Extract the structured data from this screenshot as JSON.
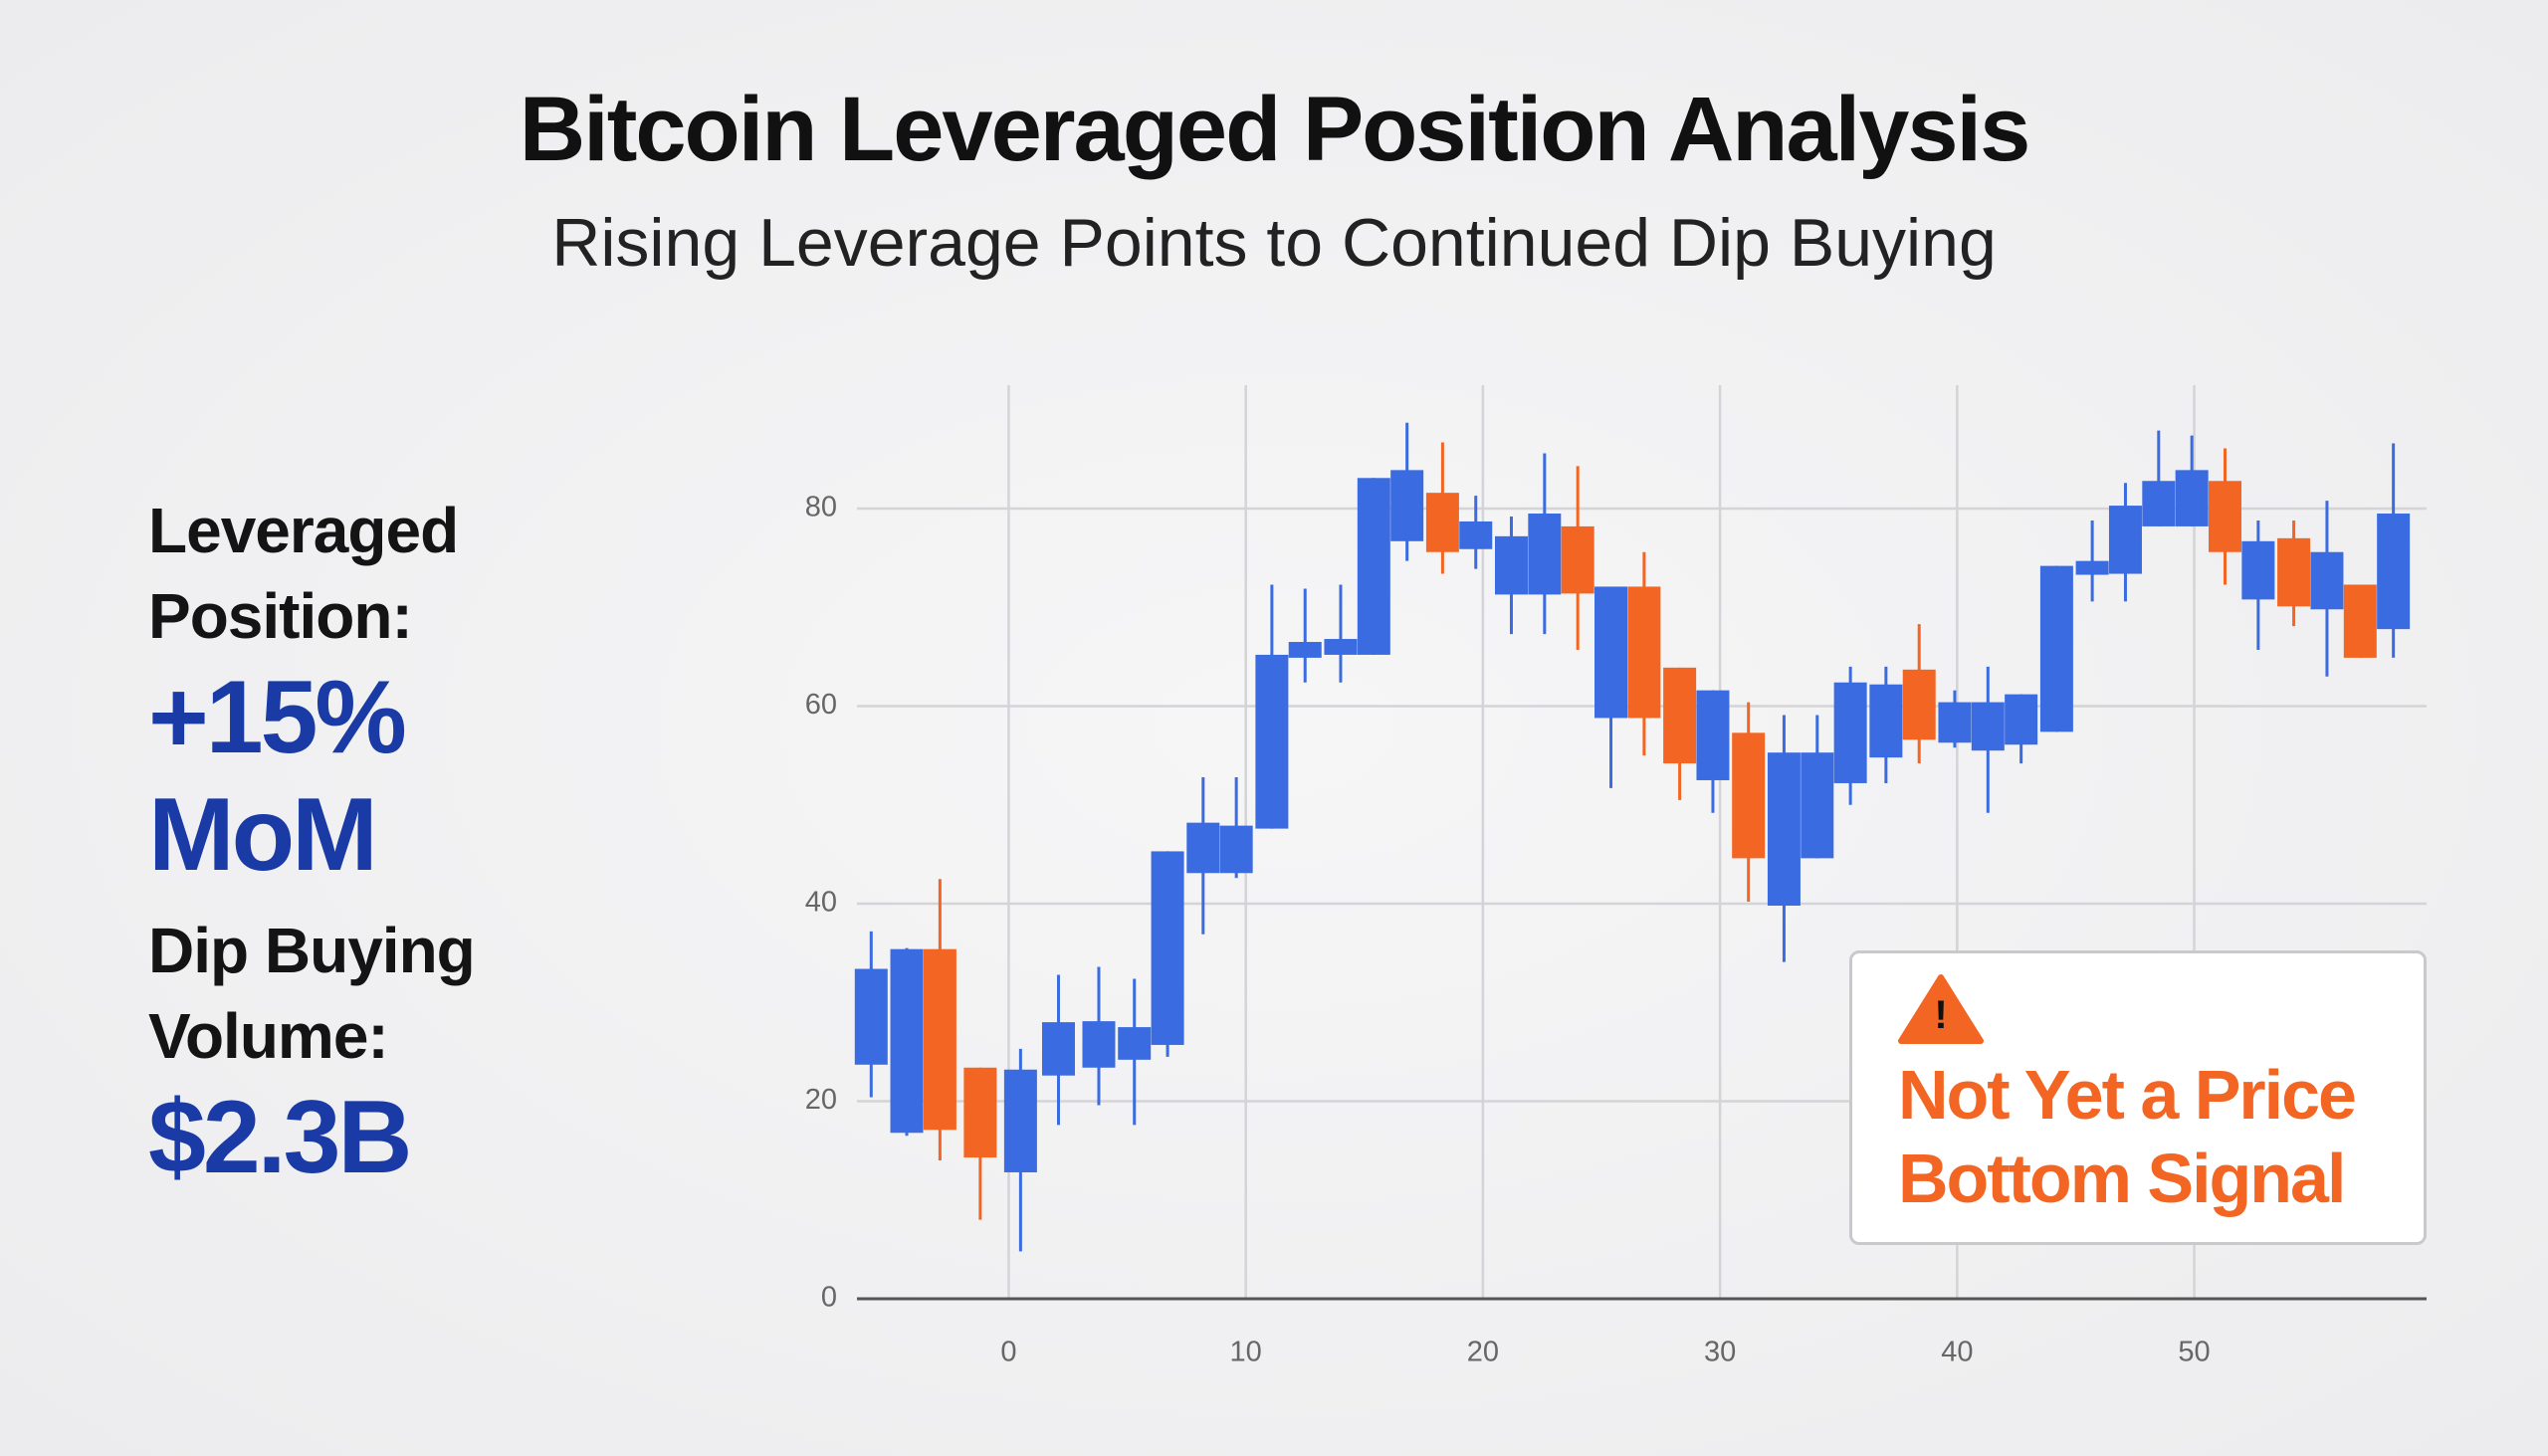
{
  "chart_data": {
    "type": "candlestick",
    "title": "Bitcoin Leveraged Position Analysis",
    "subtitle": "Rising Leverage Points to Continued Dip Buying",
    "x": [
      -5.8,
      -4.3,
      -2.9,
      -1.2,
      0.5,
      2.1,
      3.8,
      5.3,
      6.7,
      8.2,
      9.6,
      11.1,
      12.5,
      14.0,
      15.4,
      16.8,
      18.3,
      19.7,
      21.2,
      22.6,
      24.0,
      25.4,
      26.8,
      28.3,
      29.7,
      31.2,
      32.7,
      34.1,
      35.5,
      37.0,
      38.4,
      39.9,
      41.3,
      42.7,
      44.2,
      45.7,
      47.1,
      48.5,
      49.9,
      51.3,
      52.7,
      54.2,
      55.6,
      57.0,
      58.4
    ],
    "open": [
      23.7,
      16.8,
      35.4,
      23.4,
      12.8,
      22.6,
      23.4,
      24.2,
      25.7,
      43.1,
      43.1,
      47.6,
      64.9,
      65.2,
      65.2,
      76.7,
      81.6,
      75.9,
      71.3,
      71.3,
      78.2,
      58.8,
      72.1,
      63.9,
      52.5,
      57.3,
      39.8,
      44.6,
      52.2,
      54.8,
      63.7,
      56.3,
      55.5,
      56.1,
      57.4,
      73.3,
      73.4,
      78.2,
      78.2,
      82.8,
      70.8,
      77.0,
      69.8,
      72.3,
      67.8
    ],
    "high": [
      37.2,
      35.5,
      42.5,
      23.4,
      25.3,
      32.8,
      33.6,
      32.4,
      45.3,
      52.8,
      52.8,
      72.3,
      71.9,
      72.3,
      83.1,
      88.7,
      86.7,
      81.3,
      79.2,
      85.6,
      84.3,
      72.1,
      75.6,
      63.9,
      61.6,
      60.4,
      59.1,
      59.1,
      64.0,
      64.0,
      68.3,
      61.6,
      64.0,
      61.2,
      74.2,
      78.8,
      82.6,
      87.9,
      87.4,
      86.1,
      78.8,
      78.8,
      80.8,
      72.3,
      86.6
    ],
    "low": [
      20.4,
      16.5,
      14.0,
      8.0,
      4.8,
      17.6,
      19.6,
      17.6,
      24.5,
      36.9,
      42.6,
      47.6,
      62.4,
      62.4,
      65.2,
      74.7,
      73.4,
      73.9,
      67.3,
      67.3,
      65.7,
      51.7,
      55.0,
      50.5,
      49.2,
      40.2,
      34.1,
      44.6,
      50.0,
      52.2,
      54.2,
      55.8,
      49.2,
      54.2,
      57.4,
      70.6,
      70.6,
      78.2,
      78.2,
      72.3,
      65.7,
      68.1,
      63.0,
      64.9,
      64.9
    ],
    "close": [
      33.4,
      35.4,
      17.1,
      14.3,
      23.2,
      28.0,
      28.1,
      27.5,
      45.3,
      48.2,
      47.9,
      65.2,
      66.5,
      66.8,
      83.1,
      83.9,
      75.6,
      78.7,
      77.2,
      79.5,
      71.4,
      72.1,
      58.8,
      54.2,
      61.6,
      44.6,
      55.3,
      55.3,
      62.4,
      62.2,
      56.6,
      60.4,
      60.4,
      61.2,
      74.2,
      74.7,
      80.3,
      82.8,
      83.9,
      75.6,
      76.7,
      70.1,
      75.6,
      64.9,
      79.5
    ],
    "up_color": "#3b6be0",
    "down_color": "#f26522",
    "xlim": [
      -6.4,
      59.8
    ],
    "ylim": [
      0,
      92.5
    ],
    "xticks": [
      0,
      10,
      20,
      30,
      40,
      50
    ],
    "yticks": [
      0,
      20,
      40,
      60,
      80
    ],
    "grid": true
  },
  "panel": [
    {
      "label": "Leveraged Position:",
      "value": "+15% MoM"
    },
    {
      "label": "Dip Buying Volume:",
      "value": "$2.3B"
    }
  ],
  "callout": {
    "icon": "!",
    "text": "Not Yet a Price Bottom Signal"
  }
}
